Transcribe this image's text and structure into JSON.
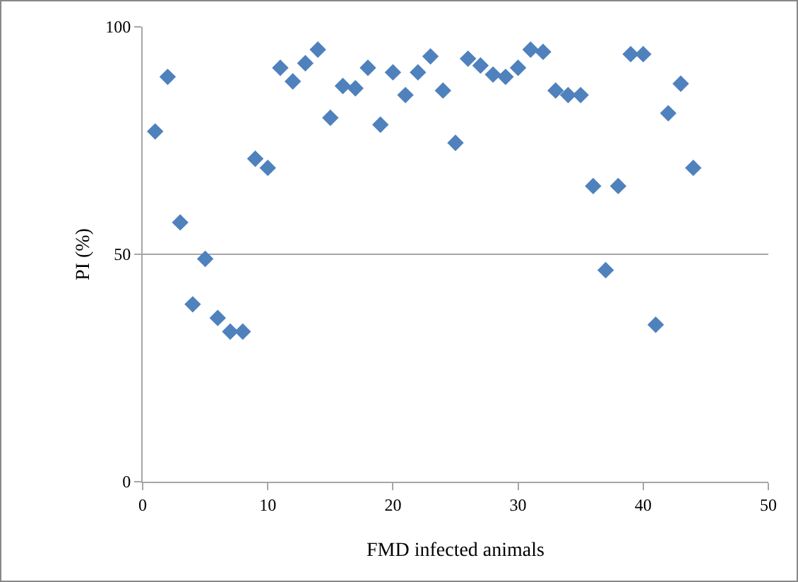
{
  "chart_data": {
    "type": "scatter",
    "xlabel": "FMD infected animals",
    "ylabel": "PI (%)",
    "x": [
      1,
      2,
      3,
      4,
      5,
      6,
      7,
      8,
      9,
      10,
      11,
      12,
      13,
      14,
      15,
      16,
      17,
      18,
      19,
      20,
      21,
      22,
      23,
      24,
      25,
      26,
      27,
      28,
      29,
      30,
      31,
      32,
      33,
      34,
      35,
      36,
      37,
      38,
      39,
      40,
      41,
      42,
      43,
      44
    ],
    "series": [
      {
        "color": "#4f81bd",
        "values": [
          77,
          89,
          57,
          39,
          49,
          36,
          33,
          33,
          71,
          69,
          91,
          88,
          92,
          95,
          80,
          87,
          86.5,
          91,
          78.5,
          90,
          85,
          90,
          93.5,
          86,
          74.5,
          93,
          91.5,
          89.5,
          89,
          91,
          95,
          94.5,
          86,
          85,
          85,
          65,
          46.5,
          65,
          94,
          94,
          34.5,
          81,
          87.5,
          69
        ]
      }
    ],
    "xlim": [
      0,
      50
    ],
    "xticks": [
      0,
      10,
      20,
      30,
      40,
      50
    ],
    "ylim": [
      0,
      100
    ],
    "yticks": [
      0,
      50,
      100
    ],
    "grid": "y",
    "legend": false,
    "marker": "diamond"
  }
}
